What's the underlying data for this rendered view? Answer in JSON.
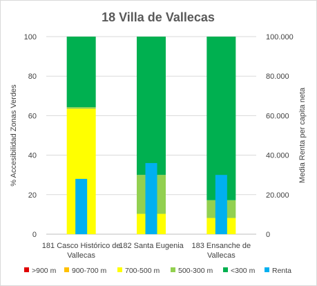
{
  "chart_data": {
    "type": "bar",
    "title": "18 Villa de Vallecas",
    "ylabel_left": "% Accesibilidad Zonas Verdes",
    "ylabel_right": "Media Renta per capita neta",
    "ylim_left": [
      0,
      100
    ],
    "ylim_right": [
      0,
      100000
    ],
    "yticks_left": [
      "0",
      "20",
      "40",
      "60",
      "80",
      "100"
    ],
    "yticks_right": [
      "0",
      "20.000",
      "40.000",
      "60.000",
      "80.000",
      "100.000"
    ],
    "categories": [
      [
        "181 Casco Histórico de",
        "Vallecas"
      ],
      [
        "182 Santa Eugenia"
      ],
      [
        "183 Ensanche de",
        "Vallecas"
      ]
    ],
    "stacked_series": [
      {
        "name": ">900 m",
        "color": "#e00000",
        "values": [
          0,
          0,
          0
        ]
      },
      {
        "name": "900-700 m",
        "color": "#ffc000",
        "values": [
          0,
          0,
          0
        ]
      },
      {
        "name": "700-500 m",
        "color": "#ffff00",
        "values": [
          63.5,
          10.3,
          8.2
        ]
      },
      {
        "name": "500-300 m",
        "color": "#92d050",
        "values": [
          0.8,
          19.7,
          9.0
        ]
      },
      {
        "name": "<300 m",
        "color": "#00b050",
        "values": [
          35.7,
          70.0,
          82.8
        ]
      }
    ],
    "renta_series": {
      "name": "Renta",
      "color": "#00b0f0",
      "values": [
        28000,
        36000,
        30000
      ]
    },
    "legend_position": "bottom"
  }
}
